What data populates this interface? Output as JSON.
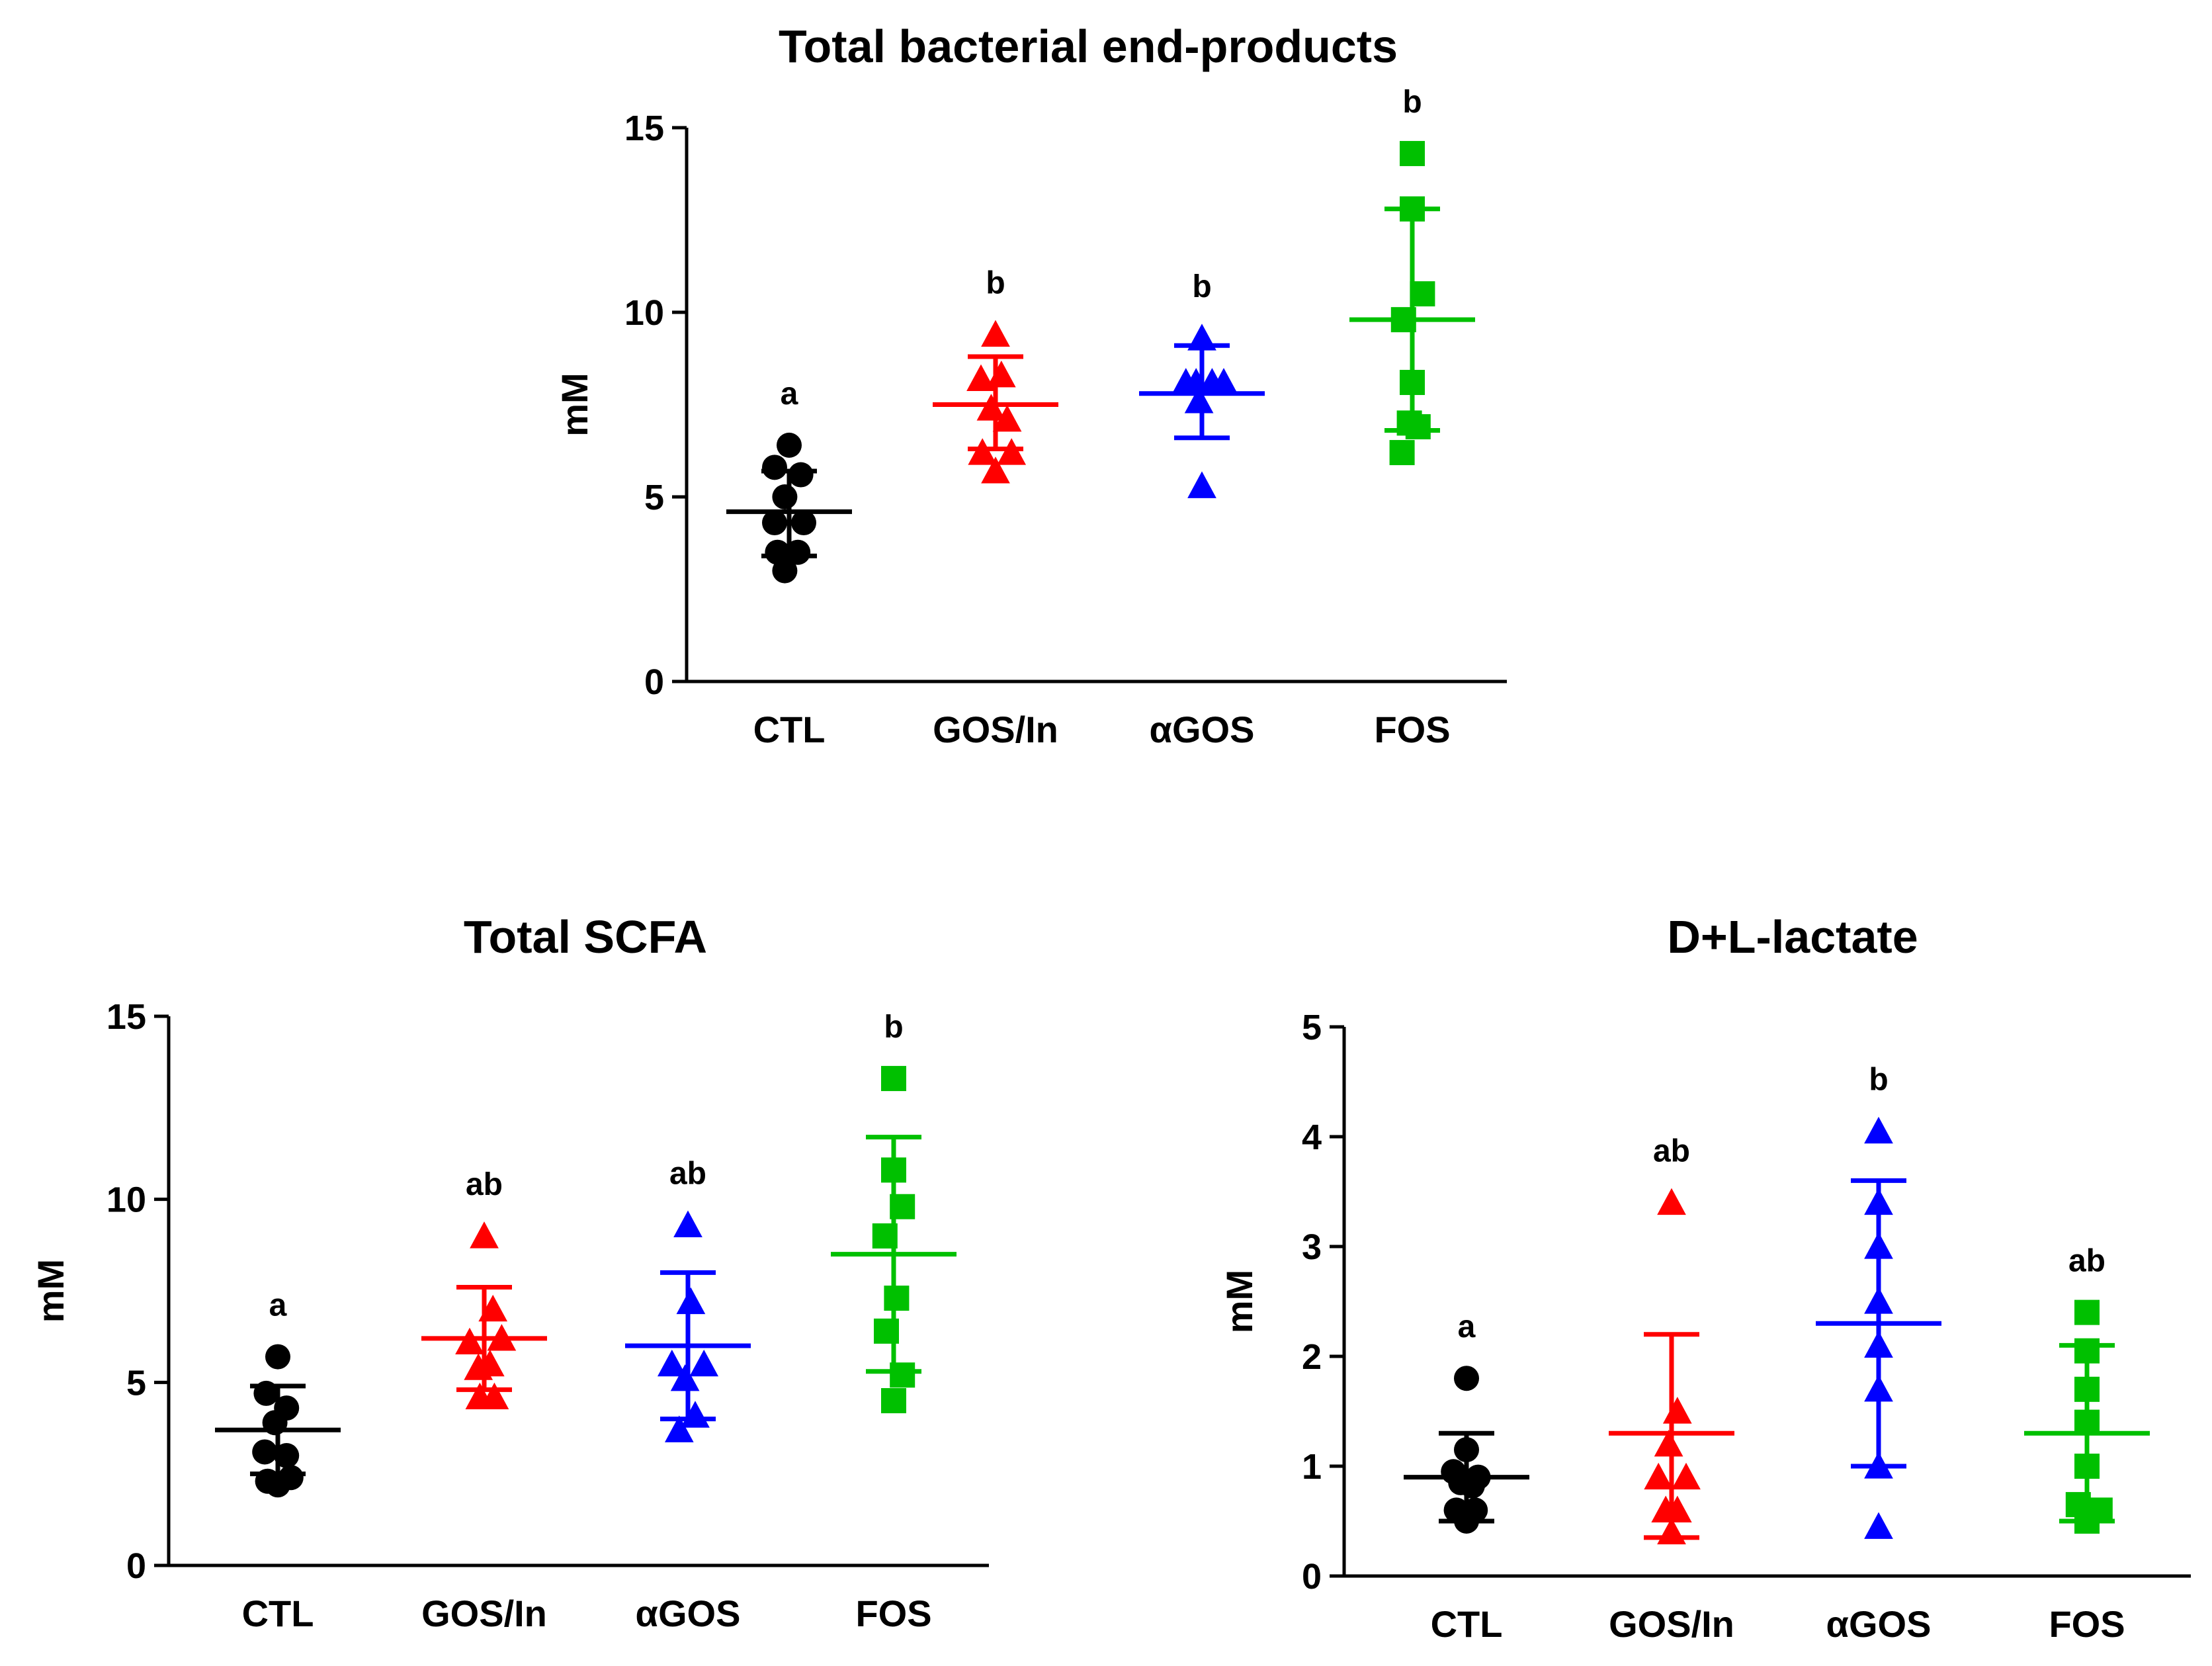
{
  "colors": {
    "CTL": "#000000",
    "GOS/In": "#ff0000",
    "αGOS": "#0000ff",
    "FOS": "#00c000"
  },
  "marker_shapes": {
    "CTL": "circle",
    "GOS/In": "triangle",
    "αGOS": "triangle",
    "FOS": "square"
  },
  "chart_data": [
    {
      "id": "total-bacterial",
      "type": "scatter",
      "title": "Total bacterial end-products",
      "xlabel": "",
      "ylabel": "mM",
      "ylim": [
        0,
        15
      ],
      "yticks": [
        0,
        5,
        10,
        15
      ],
      "categories": [
        "CTL",
        "GOS/In",
        "αGOS",
        "FOS"
      ],
      "series": [
        {
          "name": "CTL",
          "mean": 4.6,
          "sd_low": 3.4,
          "sd_high": 5.7,
          "letter": "a",
          "points": [
            [
              0,
              6.4
            ],
            [
              -0.5,
              5.8
            ],
            [
              0.4,
              5.6
            ],
            [
              -0.15,
              5.0
            ],
            [
              -0.5,
              4.3
            ],
            [
              0.5,
              4.3
            ],
            [
              -0.4,
              3.5
            ],
            [
              0.3,
              3.5
            ],
            [
              -0.15,
              3.0
            ]
          ]
        },
        {
          "name": "GOS/In",
          "mean": 7.5,
          "sd_low": 6.3,
          "sd_high": 8.8,
          "letter": "b",
          "points": [
            [
              0,
              9.4
            ],
            [
              -0.5,
              8.2
            ],
            [
              0.2,
              8.3
            ],
            [
              -0.15,
              7.4
            ],
            [
              0.4,
              7.1
            ],
            [
              -0.45,
              6.2
            ],
            [
              0.55,
              6.2
            ],
            [
              0,
              5.7
            ]
          ]
        },
        {
          "name": "αGOS",
          "mean": 7.8,
          "sd_low": 6.6,
          "sd_high": 9.1,
          "letter": "b",
          "points": [
            [
              0,
              9.3
            ],
            [
              -0.55,
              8.1
            ],
            [
              -0.2,
              8.1
            ],
            [
              0.35,
              8.1
            ],
            [
              0.75,
              8.1
            ],
            [
              -0.1,
              7.6
            ],
            [
              0,
              5.3
            ]
          ]
        },
        {
          "name": "FOS",
          "mean": 9.8,
          "sd_low": 6.8,
          "sd_high": 12.8,
          "letter": "b",
          "points": [
            [
              0,
              14.3
            ],
            [
              0,
              12.8
            ],
            [
              0.35,
              10.5
            ],
            [
              -0.3,
              9.8
            ],
            [
              0,
              8.1
            ],
            [
              -0.1,
              7.0
            ],
            [
              0.2,
              6.9
            ],
            [
              -0.35,
              6.2
            ]
          ]
        }
      ]
    },
    {
      "id": "total-scfa",
      "type": "scatter",
      "title": "Total SCFA",
      "xlabel": "",
      "ylabel": "mM",
      "ylim": [
        0,
        15
      ],
      "yticks": [
        0,
        5,
        10,
        15
      ],
      "categories": [
        "CTL",
        "GOS/In",
        "αGOS",
        "FOS"
      ],
      "series": [
        {
          "name": "CTL",
          "mean": 3.7,
          "sd_low": 2.5,
          "sd_high": 4.9,
          "letter": "a",
          "points": [
            [
              0,
              5.7
            ],
            [
              -0.4,
              4.7
            ],
            [
              0.3,
              4.3
            ],
            [
              -0.1,
              3.9
            ],
            [
              -0.45,
              3.1
            ],
            [
              0.3,
              3.0
            ],
            [
              -0.35,
              2.3
            ],
            [
              0.45,
              2.4
            ],
            [
              0,
              2.2
            ]
          ]
        },
        {
          "name": "GOS/In",
          "mean": 6.2,
          "sd_low": 4.8,
          "sd_high": 7.6,
          "letter": "ab",
          "points": [
            [
              0,
              9.0
            ],
            [
              0.3,
              7.0
            ],
            [
              -0.5,
              6.1
            ],
            [
              0.6,
              6.2
            ],
            [
              -0.2,
              5.4
            ],
            [
              0.2,
              5.5
            ],
            [
              -0.15,
              4.6
            ],
            [
              0.35,
              4.6
            ]
          ]
        },
        {
          "name": "αGOS",
          "mean": 6.0,
          "sd_low": 4.0,
          "sd_high": 8.0,
          "letter": "ab",
          "points": [
            [
              0,
              9.3
            ],
            [
              0.1,
              7.2
            ],
            [
              -0.55,
              5.5
            ],
            [
              0.55,
              5.5
            ],
            [
              -0.1,
              5.1
            ],
            [
              0.25,
              4.1
            ],
            [
              -0.3,
              3.7
            ]
          ]
        },
        {
          "name": "FOS",
          "mean": 8.5,
          "sd_low": 5.3,
          "sd_high": 11.7,
          "letter": "b",
          "points": [
            [
              0,
              13.3
            ],
            [
              0,
              10.8
            ],
            [
              0.3,
              9.8
            ],
            [
              -0.3,
              9.0
            ],
            [
              0.1,
              7.3
            ],
            [
              -0.25,
              6.4
            ],
            [
              0.3,
              5.2
            ],
            [
              0,
              4.5
            ]
          ]
        }
      ]
    },
    {
      "id": "dl-lactate",
      "type": "scatter",
      "title": "D+L-lactate",
      "xlabel": "",
      "ylabel": "mM",
      "ylim": [
        0,
        5
      ],
      "yticks": [
        0,
        1,
        2,
        3,
        4,
        5
      ],
      "categories": [
        "CTL",
        "GOS/In",
        "αGOS",
        "FOS"
      ],
      "series": [
        {
          "name": "CTL",
          "mean": 0.9,
          "sd_low": 0.5,
          "sd_high": 1.3,
          "letter": "a",
          "points": [
            [
              0,
              1.8
            ],
            [
              0,
              1.15
            ],
            [
              -0.45,
              0.95
            ],
            [
              0.4,
              0.9
            ],
            [
              -0.2,
              0.85
            ],
            [
              0.2,
              0.82
            ],
            [
              -0.35,
              0.6
            ],
            [
              0.3,
              0.6
            ],
            [
              0,
              0.5
            ]
          ]
        },
        {
          "name": "GOS/In",
          "mean": 1.3,
          "sd_low": 0.35,
          "sd_high": 2.2,
          "letter": "ab",
          "points": [
            [
              0,
              3.4
            ],
            [
              0.2,
              1.5
            ],
            [
              -0.1,
              1.2
            ],
            [
              -0.45,
              0.9
            ],
            [
              0.5,
              0.9
            ],
            [
              -0.2,
              0.6
            ],
            [
              0.2,
              0.6
            ],
            [
              0,
              0.4
            ]
          ]
        },
        {
          "name": "αGOS",
          "mean": 2.3,
          "sd_low": 1.0,
          "sd_high": 3.6,
          "letter": "b",
          "points": [
            [
              0,
              4.05
            ],
            [
              0,
              3.4
            ],
            [
              0,
              3.0
            ],
            [
              0,
              2.5
            ],
            [
              0,
              2.1
            ],
            [
              0,
              1.7
            ],
            [
              0,
              1.0
            ],
            [
              0,
              0.45
            ]
          ]
        },
        {
          "name": "FOS",
          "mean": 1.3,
          "sd_low": 0.5,
          "sd_high": 2.1,
          "letter": "ab",
          "points": [
            [
              0,
              2.4
            ],
            [
              0,
              2.05
            ],
            [
              0,
              1.7
            ],
            [
              0,
              1.4
            ],
            [
              0,
              1.0
            ],
            [
              -0.3,
              0.65
            ],
            [
              0.45,
              0.6
            ],
            [
              0,
              0.5
            ]
          ]
        }
      ]
    }
  ]
}
